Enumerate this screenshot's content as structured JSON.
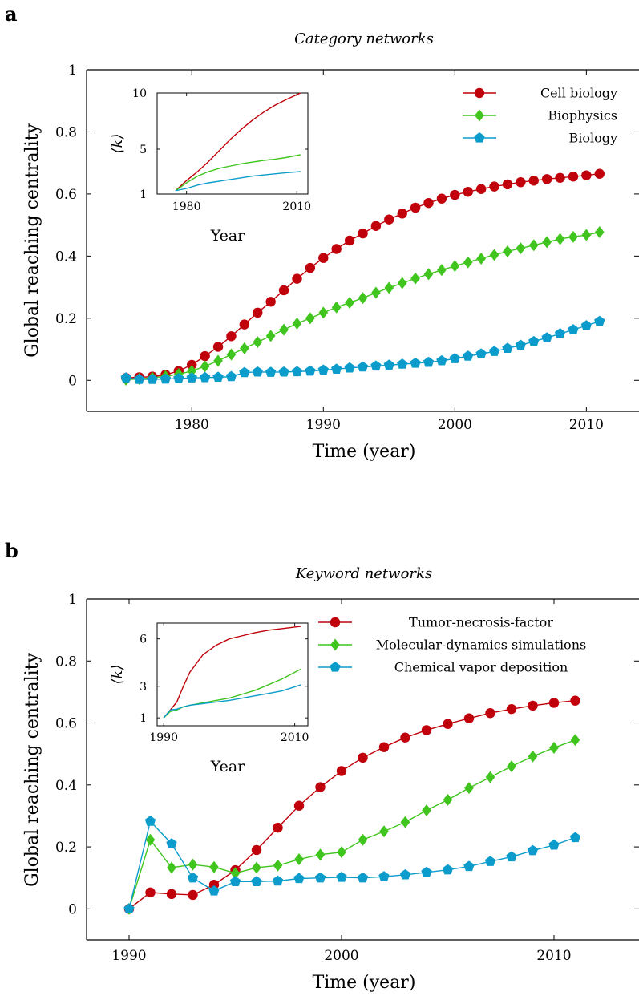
{
  "colors": {
    "red": "#c0000a",
    "green": "#3fc51d",
    "blue": "#0c9ccc",
    "axis": "#000000"
  },
  "chart_data": [
    {
      "panel_label": "a",
      "type": "line",
      "title": "Category networks",
      "xlabel": "Time (year)",
      "ylabel": "Global reaching centrality",
      "xlim": [
        1972,
        2014
      ],
      "ylim": [
        -0.1,
        1.0
      ],
      "x_ticks": [
        1980,
        1990,
        2000,
        2010
      ],
      "y_ticks": [
        0,
        0.2,
        0.4,
        0.6,
        0.8,
        1
      ],
      "y_tick_labels": [
        "0",
        "0.2",
        "0.4",
        "0.6",
        "0.8",
        "1"
      ],
      "legend_placement": "top-right",
      "x": [
        1975,
        1976,
        1977,
        1978,
        1979,
        1980,
        1981,
        1982,
        1983,
        1984,
        1985,
        1986,
        1987,
        1988,
        1989,
        1990,
        1991,
        1992,
        1993,
        1994,
        1995,
        1996,
        1997,
        1998,
        1999,
        2000,
        2001,
        2002,
        2003,
        2004,
        2005,
        2006,
        2007,
        2008,
        2009,
        2010,
        2011
      ],
      "series": [
        {
          "name": "Cell biology",
          "color": "red",
          "marker": "circle",
          "values": [
            0.008,
            0.01,
            0.012,
            0.018,
            0.03,
            0.05,
            0.078,
            0.108,
            0.142,
            0.18,
            0.218,
            0.253,
            0.29,
            0.327,
            0.362,
            0.394,
            0.423,
            0.45,
            0.473,
            0.497,
            0.518,
            0.537,
            0.556,
            0.571,
            0.585,
            0.597,
            0.607,
            0.616,
            0.624,
            0.631,
            0.638,
            0.643,
            0.648,
            0.652,
            0.656,
            0.66,
            0.665
          ]
        },
        {
          "name": "Biophysics",
          "color": "green",
          "marker": "diamond",
          "values": [
            0.002,
            0.005,
            0.008,
            0.013,
            0.02,
            0.03,
            0.045,
            0.063,
            0.083,
            0.103,
            0.123,
            0.143,
            0.163,
            0.183,
            0.2,
            0.218,
            0.235,
            0.25,
            0.265,
            0.282,
            0.298,
            0.313,
            0.328,
            0.342,
            0.355,
            0.368,
            0.38,
            0.392,
            0.404,
            0.415,
            0.425,
            0.435,
            0.445,
            0.455,
            0.462,
            0.468,
            0.477
          ]
        },
        {
          "name": "Biology",
          "color": "blue",
          "marker": "pentagon",
          "values": [
            0.008,
            0.003,
            0.003,
            0.004,
            0.006,
            0.008,
            0.009,
            0.01,
            0.012,
            0.025,
            0.027,
            0.026,
            0.027,
            0.028,
            0.03,
            0.033,
            0.036,
            0.04,
            0.043,
            0.046,
            0.049,
            0.052,
            0.055,
            0.058,
            0.063,
            0.07,
            0.078,
            0.085,
            0.093,
            0.103,
            0.113,
            0.125,
            0.137,
            0.15,
            0.163,
            0.176,
            0.19
          ]
        }
      ],
      "inset": {
        "xlabel": "Year",
        "ylabel": "⟨k⟩",
        "xlim": [
          1972,
          2013
        ],
        "ylim": [
          1,
          10
        ],
        "x_ticks": [
          1980,
          2010
        ],
        "y_ticks": [
          1,
          5,
          10
        ],
        "x": [
          1977,
          1980,
          1983,
          1986,
          1989,
          1992,
          1995,
          1998,
          2001,
          2004,
          2007,
          2011
        ],
        "series": [
          {
            "color": "red",
            "values": [
              1.3,
              2.2,
              3.0,
              3.9,
              4.9,
              5.9,
              6.8,
              7.6,
              8.3,
              8.9,
              9.4,
              10.0
            ]
          },
          {
            "color": "green",
            "values": [
              1.3,
              2.0,
              2.6,
              3.0,
              3.3,
              3.5,
              3.7,
              3.85,
              4.0,
              4.1,
              4.25,
              4.5
            ]
          },
          {
            "color": "blue",
            "values": [
              1.3,
              1.5,
              1.8,
              2.0,
              2.15,
              2.3,
              2.45,
              2.6,
              2.7,
              2.8,
              2.9,
              3.0
            ]
          }
        ]
      }
    },
    {
      "panel_label": "b",
      "type": "line",
      "title": "Keyword networks",
      "xlabel": "Time (year)",
      "ylabel": "Global reaching centrality",
      "xlim": [
        1988,
        2014
      ],
      "ylim": [
        -0.1,
        1.0
      ],
      "x_ticks": [
        1990,
        2000,
        2010
      ],
      "y_ticks": [
        0,
        0.2,
        0.4,
        0.6,
        0.8,
        1
      ],
      "y_tick_labels": [
        "0",
        "0.2",
        "0.4",
        "0.6",
        "0.8",
        "1"
      ],
      "legend_placement": "top-right",
      "x": [
        1990,
        1991,
        1992,
        1993,
        1994,
        1995,
        1996,
        1997,
        1998,
        1999,
        2000,
        2001,
        2002,
        2003,
        2004,
        2005,
        2006,
        2007,
        2008,
        2009,
        2010,
        2011
      ],
      "series": [
        {
          "name": "Tumor-necrosis-factor",
          "color": "red",
          "marker": "circle",
          "values": [
            0.0,
            0.053,
            0.048,
            0.045,
            0.078,
            0.125,
            0.19,
            0.262,
            0.333,
            0.393,
            0.445,
            0.488,
            0.522,
            0.553,
            0.577,
            0.597,
            0.615,
            0.632,
            0.645,
            0.656,
            0.665,
            0.672
          ]
        },
        {
          "name": "Molecular-dynamics simulations",
          "color": "green",
          "marker": "diamond",
          "values": [
            0.0,
            0.223,
            0.133,
            0.143,
            0.135,
            0.115,
            0.133,
            0.14,
            0.16,
            0.175,
            0.183,
            0.223,
            0.25,
            0.28,
            0.318,
            0.352,
            0.39,
            0.425,
            0.46,
            0.492,
            0.52,
            0.545
          ]
        },
        {
          "name": "Chemical vapor deposition",
          "color": "blue",
          "marker": "pentagon",
          "values": [
            0.0,
            0.283,
            0.21,
            0.1,
            0.058,
            0.088,
            0.088,
            0.09,
            0.098,
            0.1,
            0.102,
            0.1,
            0.104,
            0.11,
            0.118,
            0.126,
            0.137,
            0.153,
            0.168,
            0.188,
            0.206,
            0.23
          ]
        }
      ],
      "inset": {
        "xlabel": "Year",
        "ylabel": "⟨k⟩",
        "xlim": [
          1989,
          2012
        ],
        "ylim": [
          0.5,
          7
        ],
        "x_ticks": [
          1990,
          2010
        ],
        "y_ticks": [
          1,
          3,
          6
        ],
        "x": [
          1990,
          1991,
          1992,
          1993,
          1994,
          1996,
          1998,
          2000,
          2002,
          2004,
          2006,
          2008,
          2011
        ],
        "series": [
          {
            "color": "red",
            "values": [
              1.0,
              1.5,
              2.0,
              3.0,
              3.9,
              5.0,
              5.6,
              6.0,
              6.2,
              6.4,
              6.55,
              6.65,
              6.8
            ]
          },
          {
            "color": "green",
            "values": [
              1.0,
              1.4,
              1.5,
              1.7,
              1.8,
              1.95,
              2.1,
              2.25,
              2.5,
              2.75,
              3.1,
              3.45,
              4.1
            ]
          },
          {
            "color": "blue",
            "values": [
              1.0,
              1.5,
              1.55,
              1.7,
              1.8,
              1.9,
              2.0,
              2.1,
              2.25,
              2.4,
              2.55,
              2.7,
              3.1
            ]
          }
        ]
      }
    }
  ]
}
